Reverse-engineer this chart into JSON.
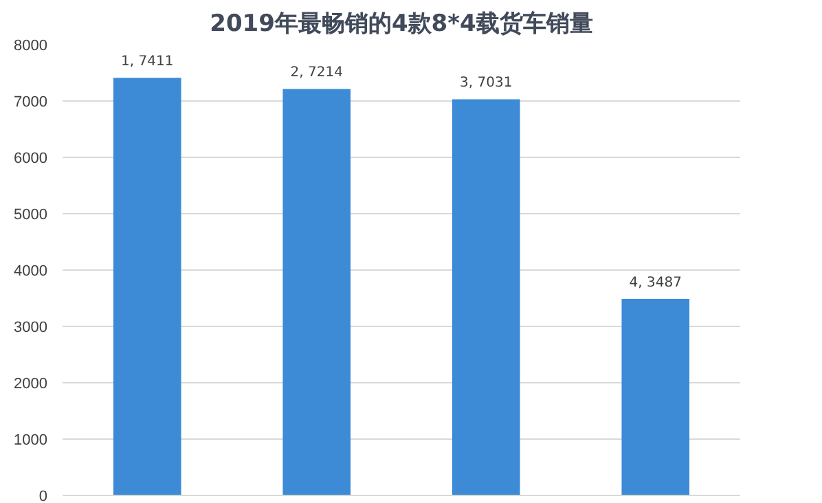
{
  "chart_data": {
    "type": "bar",
    "title": "2019年最畅销的4款8*4载货车销量",
    "categories": [
      null,
      null,
      null,
      null
    ],
    "values": [
      7411,
      7214,
      7031,
      3487
    ],
    "color": "#3d8ad6",
    "value_labels": [
      "1, 7411",
      "2, 7214",
      "3, 7031",
      "4, 3487"
    ],
    "ylim": [
      0,
      8000
    ],
    "yticks": [
      0,
      1000,
      2000,
      3000,
      4000,
      5000,
      6000,
      7000,
      8000
    ],
    "grid": "y"
  }
}
